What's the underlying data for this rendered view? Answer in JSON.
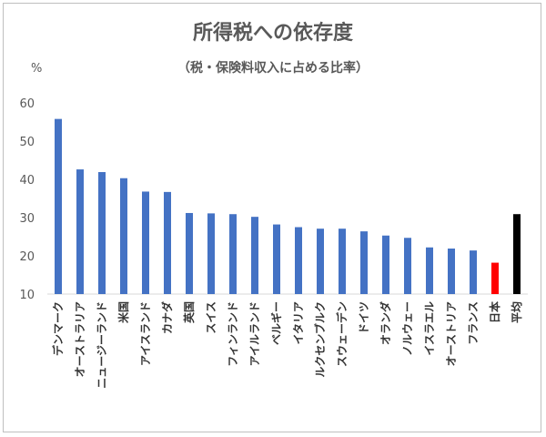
{
  "chart_data": {
    "type": "bar",
    "title": "所得税への依存度",
    "subtitle": "（税・保険料収入に占める比率）",
    "ylabel": "%",
    "ylim": [
      10,
      60
    ],
    "yticks": [
      10,
      20,
      30,
      40,
      50,
      60
    ],
    "grid": false,
    "categories": [
      "デンマーク",
      "オーストラリア",
      "ニュージーランド",
      "米国",
      "アイスランド",
      "カナダ",
      "英国",
      "スイス",
      "フィンランド",
      "アイルランド",
      "ベルギー",
      "イタリア",
      "ルクセンブルク",
      "スウェーデン",
      "ドイツ",
      "オランダ",
      "ノルウェー",
      "イスラエル",
      "オーストリア",
      "フランス",
      "日本",
      "平均"
    ],
    "values": [
      55.8,
      42.6,
      41.9,
      40.3,
      36.8,
      36.7,
      31.2,
      31.1,
      30.9,
      30.2,
      28.2,
      27.5,
      27.1,
      27.1,
      26.4,
      25.3,
      24.7,
      22.2,
      21.9,
      21.4,
      18.2,
      30.9
    ],
    "colors": {
      "default": "#4472c4",
      "日本": "#ff0000",
      "平均": "#000000"
    }
  }
}
